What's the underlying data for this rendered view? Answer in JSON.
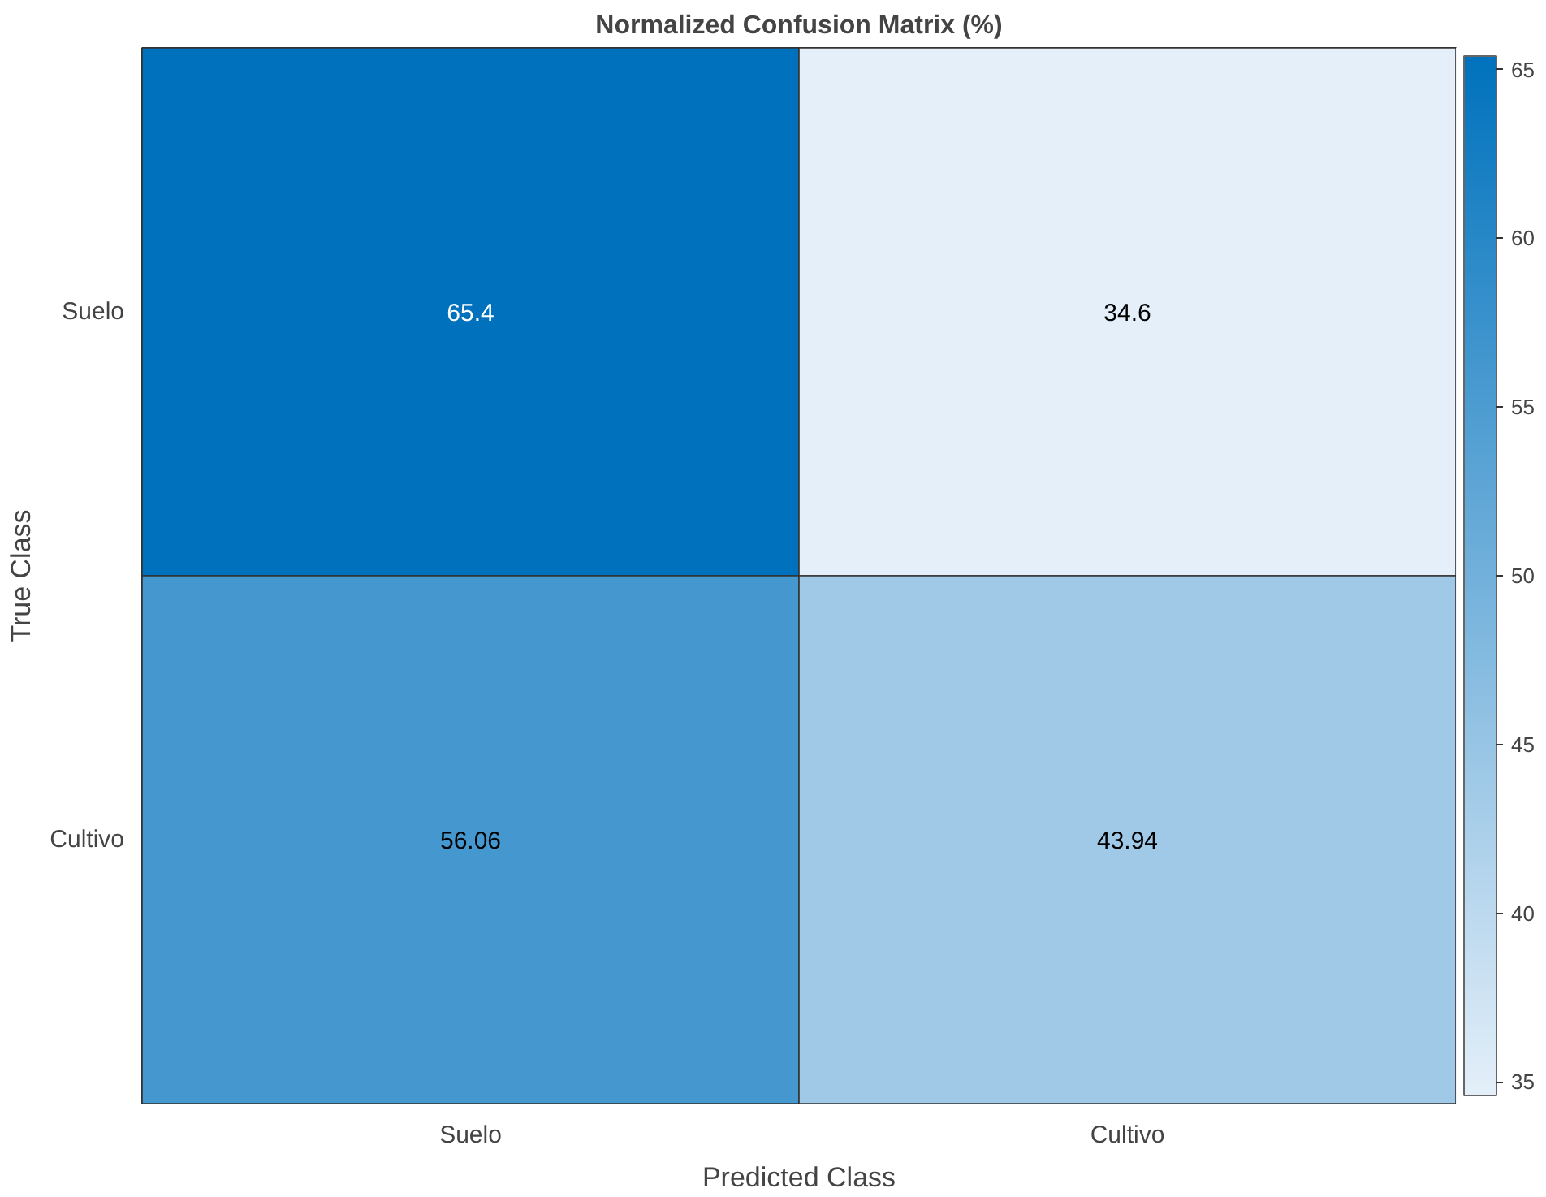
{
  "chart_data": {
    "type": "heatmap",
    "title": "Normalized Confusion Matrix (%)",
    "xlabel": "Predicted Class",
    "ylabel": "True Class",
    "categories": [
      "Suelo",
      "Cultivo"
    ],
    "y_categories": [
      "Suelo",
      "Cultivo"
    ],
    "cells": [
      [
        65.4,
        34.6
      ],
      [
        56.06,
        43.94
      ]
    ],
    "clim": [
      34.6,
      65.4
    ],
    "cticks": [
      35,
      40,
      45,
      50,
      55,
      60,
      65
    ],
    "data_labels": true
  }
}
